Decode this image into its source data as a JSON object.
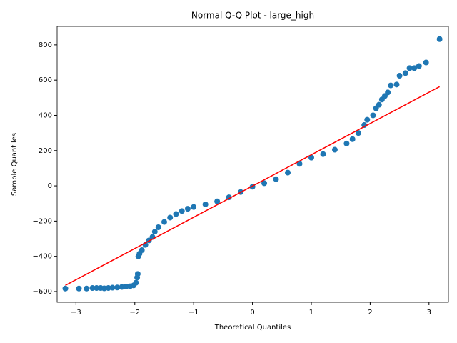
{
  "chart_data": {
    "type": "scatter",
    "title": "Normal Q-Q Plot - large_high",
    "x_label": "Theoretical Quantiles",
    "y_label": "Sample Quantiles",
    "xlim": [
      -3.32,
      3.33
    ],
    "ylim": [
      -661,
      905
    ],
    "xticks": [
      {
        "value": -3,
        "label": "−3"
      },
      {
        "value": -2,
        "label": "−2"
      },
      {
        "value": -1,
        "label": "−1"
      },
      0,
      1,
      2,
      3
    ],
    "yticks": [
      {
        "value": -600,
        "label": "−600"
      },
      {
        "value": -400,
        "label": "−400"
      },
      {
        "value": -200,
        "label": "−200"
      },
      0,
      200,
      400,
      600,
      800
    ],
    "series": [
      {
        "color": "#1f77b4",
        "x": [
          -3.18,
          -2.95,
          -2.82,
          -2.72,
          -2.65,
          -2.58,
          -2.52,
          -2.45,
          -2.38,
          -2.3,
          -2.22,
          -2.15,
          -2.08,
          -2.02,
          -1.98,
          -1.96,
          -1.95,
          -1.94,
          -1.92,
          -1.88,
          -1.82,
          -1.76,
          -1.7,
          -1.66,
          -1.6,
          -1.5,
          -1.4,
          -1.3,
          -1.2,
          -1.1,
          -1.0,
          -0.8,
          -0.6,
          -0.4,
          -0.2,
          0,
          0.2,
          0.4,
          0.6,
          0.8,
          1.0,
          1.2,
          1.4,
          1.6,
          1.7,
          1.8,
          1.9,
          1.95,
          2.05,
          2.1,
          2.15,
          2.2,
          2.25,
          2.3,
          2.35,
          2.45,
          2.5,
          2.6,
          2.67,
          2.75,
          2.83,
          2.95,
          3.18
        ],
        "values": [
          -583,
          -583,
          -583,
          -580,
          -580,
          -580,
          -582,
          -580,
          -578,
          -577,
          -574,
          -572,
          -570,
          -565,
          -550,
          -520,
          -500,
          -400,
          -385,
          -365,
          -335,
          -310,
          -290,
          -260,
          -235,
          -205,
          -180,
          -160,
          -143,
          -130,
          -120,
          -105,
          -88,
          -65,
          -35,
          -5,
          15,
          38,
          75,
          125,
          160,
          180,
          205,
          240,
          265,
          300,
          345,
          375,
          400,
          440,
          460,
          490,
          510,
          530,
          570,
          575,
          625,
          640,
          668,
          668,
          680,
          700,
          833
        ]
      }
    ],
    "reference_line": {
      "color": "red",
      "x": [
        -3.18,
        3.18
      ],
      "values": [
        -565,
        563
      ]
    }
  }
}
